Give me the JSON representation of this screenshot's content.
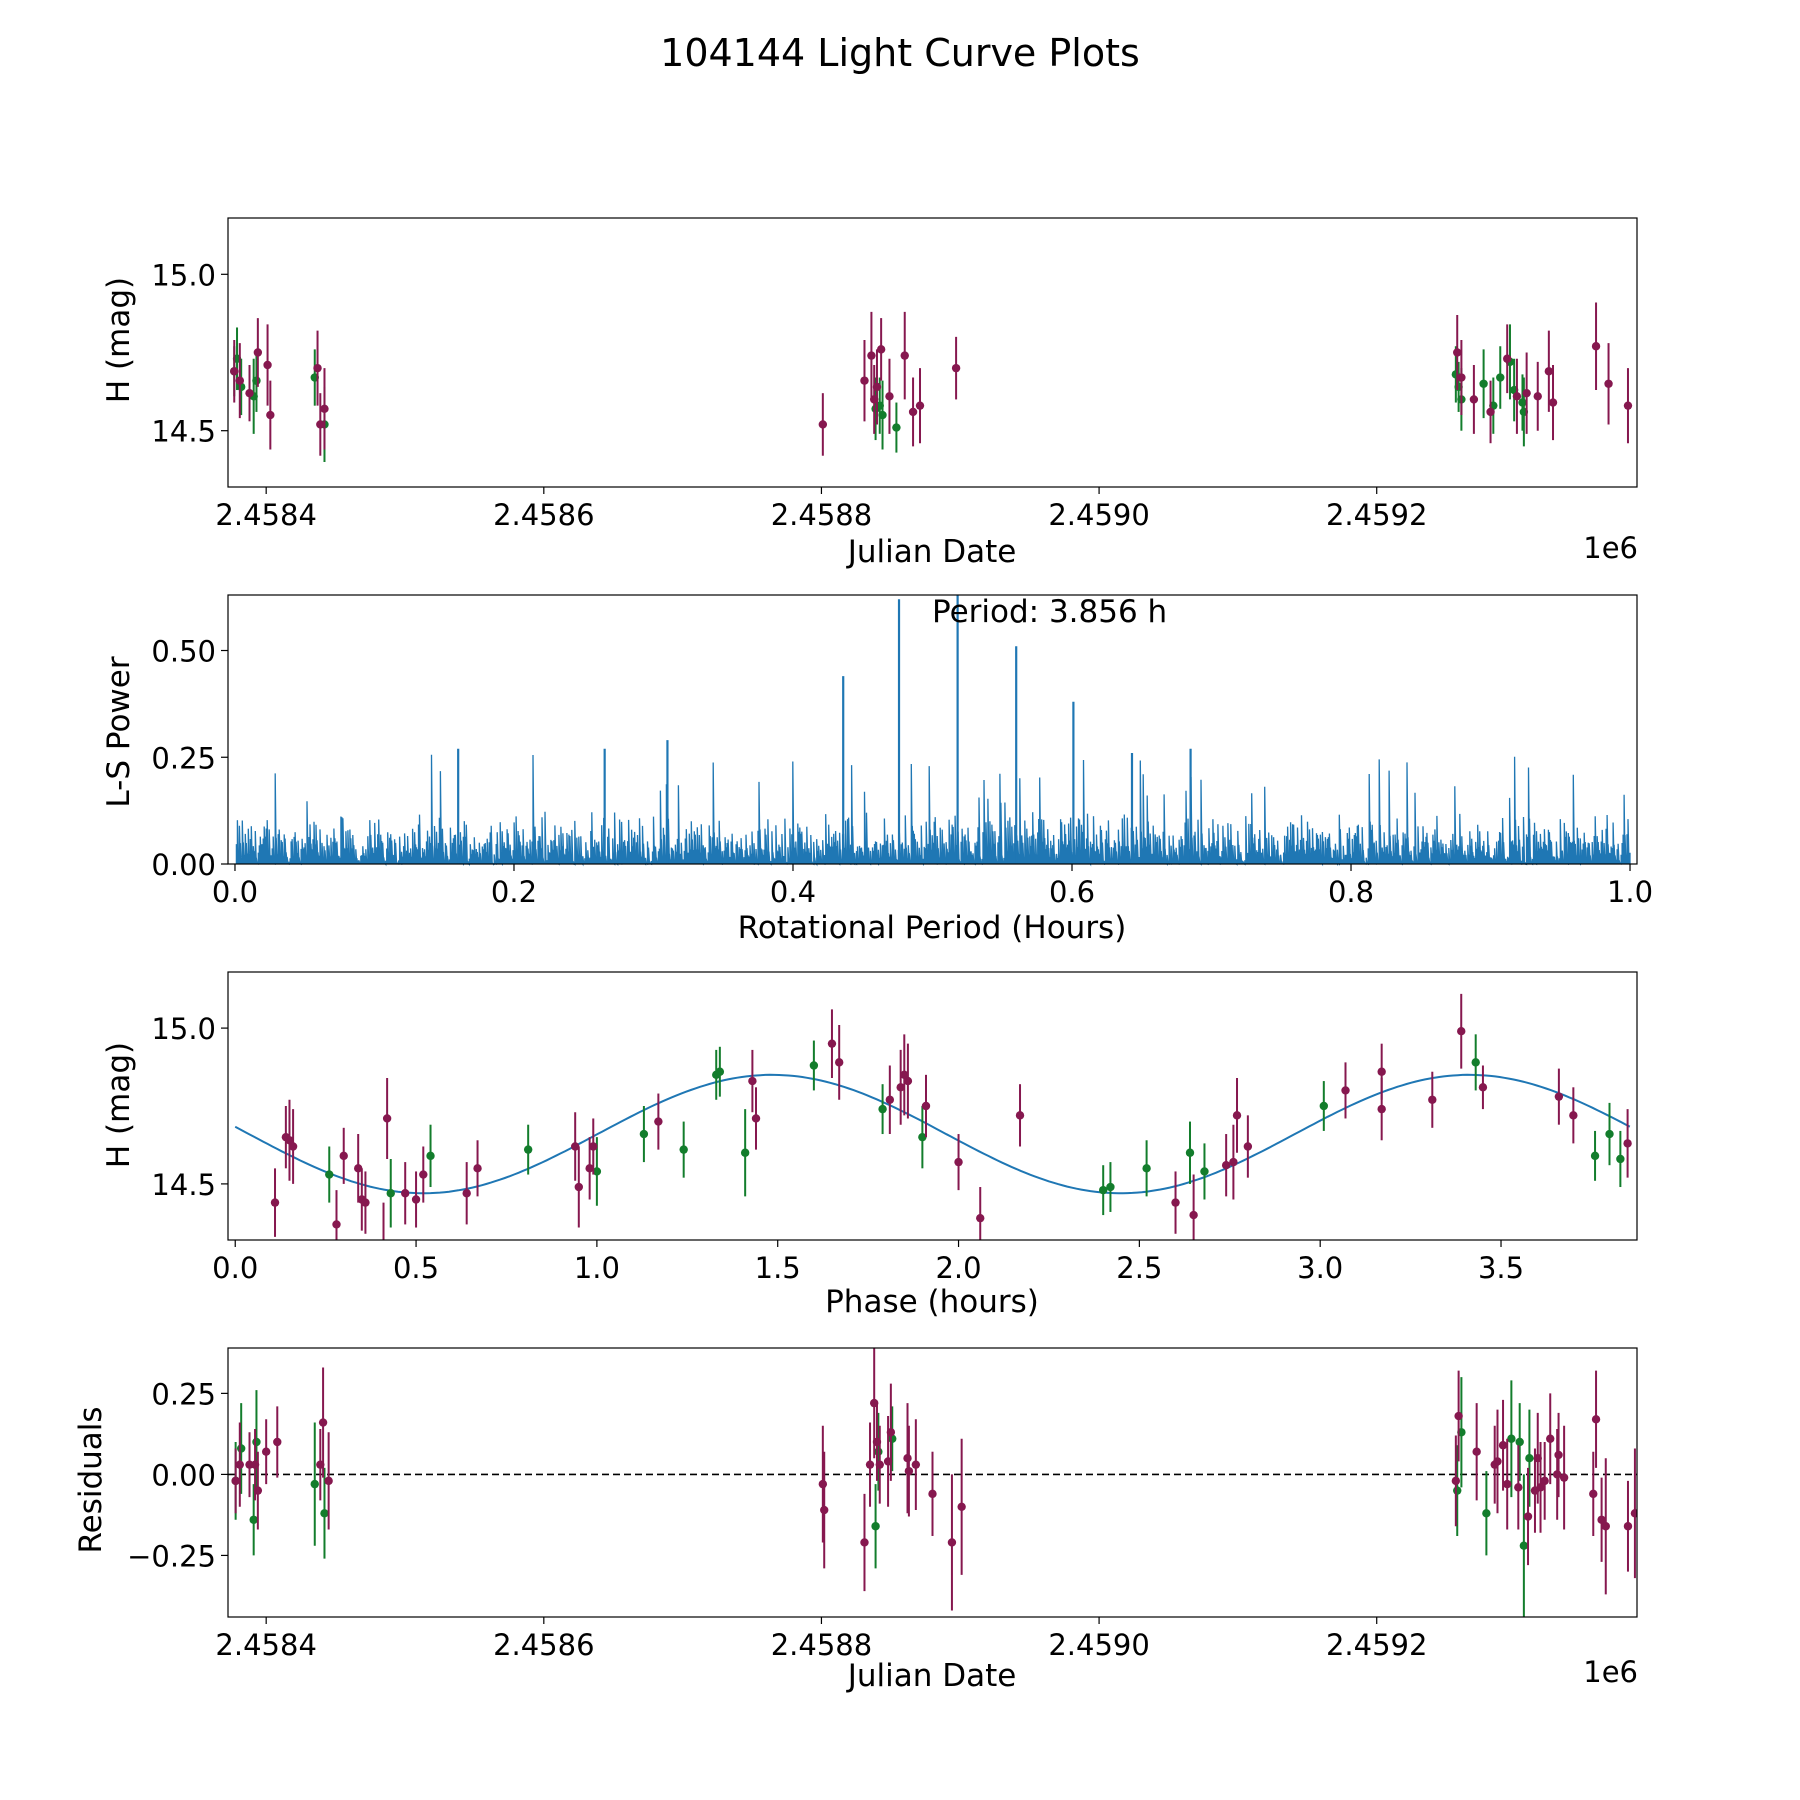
{
  "figure_title": "104144 Light Curve Plots",
  "colors": {
    "green": "#137d2c",
    "maroon": "#86184f",
    "blue": "#1f77b4",
    "axis": "#000000"
  },
  "chart_data": [
    {
      "id": "lightcurve",
      "type": "scatter",
      "title": "",
      "xlabel": "Julian Date",
      "ylabel": "H (mag)",
      "offset_text": "1e6",
      "xlim": [
        2458372.5,
        2459387.5
      ],
      "ylim": [
        14.32,
        15.18
      ],
      "y_inverted": true,
      "xticks": [
        2458400,
        2458600,
        2458800,
        2459000,
        2459200
      ],
      "xtick_labels": [
        "2.4584",
        "2.4586",
        "2.4588",
        "2.4590",
        "2.4592"
      ],
      "yticks": [
        15.0,
        14.5
      ],
      "ytick_labels": [
        "15.0",
        "14.5"
      ],
      "series": [
        {
          "name": "green",
          "color": "#137d2c",
          "x": [
            2458377,
            2458379,
            2458382,
            2458391,
            2458393,
            2458435,
            2458442,
            2458839,
            2458842,
            2458844,
            2458854,
            2459257,
            2459259,
            2459261,
            2459277,
            2459284,
            2459289,
            2459296,
            2459299,
            2459305,
            2459306
          ],
          "y": [
            14.69,
            14.73,
            14.64,
            14.61,
            14.66,
            14.67,
            14.52,
            14.57,
            14.58,
            14.55,
            14.51,
            14.68,
            14.64,
            14.6,
            14.65,
            14.58,
            14.67,
            14.72,
            14.63,
            14.59,
            14.56
          ],
          "err": [
            0.08,
            0.1,
            0.09,
            0.12,
            0.1,
            0.09,
            0.12,
            0.1,
            0.09,
            0.11,
            0.08,
            0.09,
            0.08,
            0.1,
            0.11,
            0.09,
            0.1,
            0.12,
            0.1,
            0.09,
            0.11
          ]
        },
        {
          "name": "maroon",
          "color": "#86184f",
          "x": [
            2458377,
            2458381,
            2458388,
            2458394,
            2458401,
            2458403,
            2458437,
            2458439,
            2458442,
            2458801,
            2458831,
            2458836,
            2458838,
            2458840,
            2458843,
            2458849,
            2458860,
            2458866,
            2458871,
            2458897,
            2459258,
            2459261,
            2459270,
            2459282,
            2459294,
            2459301,
            2459308,
            2459316,
            2459324,
            2459327,
            2459358,
            2459367,
            2459381
          ],
          "y": [
            14.69,
            14.66,
            14.62,
            14.75,
            14.71,
            14.55,
            14.7,
            14.52,
            14.57,
            14.52,
            14.66,
            14.74,
            14.6,
            14.64,
            14.76,
            14.61,
            14.74,
            14.56,
            14.58,
            14.7,
            14.75,
            14.67,
            14.6,
            14.56,
            14.73,
            14.61,
            14.62,
            14.61,
            14.69,
            14.59,
            14.77,
            14.65,
            14.58
          ],
          "err": [
            0.1,
            0.12,
            0.09,
            0.11,
            0.13,
            0.11,
            0.12,
            0.1,
            0.13,
            0.1,
            0.13,
            0.14,
            0.11,
            0.12,
            0.1,
            0.12,
            0.14,
            0.11,
            0.12,
            0.1,
            0.12,
            0.12,
            0.11,
            0.1,
            0.11,
            0.12,
            0.13,
            0.11,
            0.13,
            0.12,
            0.14,
            0.13,
            0.12
          ]
        }
      ]
    },
    {
      "id": "periodogram",
      "type": "line",
      "title": "",
      "xlabel": "Rotational Period (Hours)",
      "ylabel": "L-S Power",
      "xlim": [
        -0.005,
        1.005
      ],
      "ylim": [
        0.0,
        0.63
      ],
      "xticks": [
        0.0,
        0.2,
        0.4,
        0.6,
        0.8,
        1.0
      ],
      "xtick_labels": [
        "0.0",
        "0.2",
        "0.4",
        "0.6",
        "0.8",
        "1.0"
      ],
      "yticks": [
        0.0,
        0.25,
        0.5
      ],
      "ytick_labels": [
        "0.00",
        "0.25",
        "0.50"
      ],
      "annotation": "Period: 3.856 h",
      "color": "#1f77b4",
      "noise_level": 0.13,
      "peaks": [
        {
          "x": 0.436,
          "y": 0.44
        },
        {
          "x": 0.476,
          "y": 0.62
        },
        {
          "x": 0.518,
          "y": 0.63
        },
        {
          "x": 0.56,
          "y": 0.51
        },
        {
          "x": 0.601,
          "y": 0.38
        },
        {
          "x": 0.31,
          "y": 0.29
        },
        {
          "x": 0.265,
          "y": 0.27
        },
        {
          "x": 0.685,
          "y": 0.27
        },
        {
          "x": 0.16,
          "y": 0.27
        },
        {
          "x": 0.643,
          "y": 0.26
        }
      ]
    },
    {
      "id": "phased",
      "type": "scatter",
      "title": "",
      "xlabel": "Phase (hours)",
      "ylabel": "H (mag)",
      "xlim": [
        -0.02,
        3.876
      ],
      "ylim": [
        14.32,
        15.18
      ],
      "y_inverted": true,
      "xticks": [
        0.0,
        0.5,
        1.0,
        1.5,
        2.0,
        2.5,
        3.0,
        3.5
      ],
      "xtick_labels": [
        "0.0",
        "0.5",
        "1.0",
        "1.5",
        "2.0",
        "2.5",
        "3.0",
        "3.5"
      ],
      "yticks": [
        15.0,
        14.5
      ],
      "ytick_labels": [
        "15.0",
        "14.5"
      ],
      "model": {
        "period": 3.856,
        "mean": 14.66,
        "amplitude": 0.19,
        "min_phase": 0.52
      },
      "series": [
        {
          "name": "green",
          "color": "#137d2c",
          "x": [
            0.26,
            0.43,
            0.54,
            0.81,
            1.0,
            1.13,
            1.24,
            1.33,
            1.34,
            1.41,
            1.6,
            1.79,
            1.9,
            2.4,
            2.42,
            2.52,
            2.64,
            2.68,
            3.01,
            3.43,
            3.76,
            3.8,
            3.83
          ],
          "y": [
            14.53,
            14.47,
            14.59,
            14.61,
            14.54,
            14.66,
            14.61,
            14.85,
            14.86,
            14.6,
            14.88,
            14.74,
            14.65,
            14.48,
            14.49,
            14.55,
            14.6,
            14.54,
            14.75,
            14.89,
            14.59,
            14.66,
            14.58
          ],
          "err": [
            0.09,
            0.11,
            0.1,
            0.08,
            0.11,
            0.09,
            0.09,
            0.08,
            0.08,
            0.14,
            0.08,
            0.08,
            0.1,
            0.08,
            0.08,
            0.09,
            0.1,
            0.09,
            0.08,
            0.09,
            0.08,
            0.1,
            0.09
          ]
        },
        {
          "name": "maroon",
          "color": "#86184f",
          "x": [
            0.11,
            0.14,
            0.15,
            0.16,
            0.28,
            0.3,
            0.34,
            0.35,
            0.36,
            0.41,
            0.42,
            0.47,
            0.5,
            0.52,
            0.64,
            0.67,
            0.94,
            0.95,
            0.98,
            0.99,
            1.17,
            1.43,
            1.44,
            1.65,
            1.67,
            1.81,
            1.84,
            1.85,
            1.86,
            1.91,
            2.0,
            2.06,
            2.17,
            2.6,
            2.65,
            2.74,
            2.76,
            2.77,
            2.8,
            3.07,
            3.17,
            3.17,
            3.31,
            3.39,
            3.45,
            3.66,
            3.7,
            3.85
          ],
          "y": [
            14.44,
            14.65,
            14.64,
            14.62,
            14.37,
            14.59,
            14.55,
            14.45,
            14.44,
            14.29,
            14.71,
            14.47,
            14.45,
            14.53,
            14.47,
            14.55,
            14.62,
            14.49,
            14.55,
            14.62,
            14.7,
            14.83,
            14.71,
            14.95,
            14.89,
            14.77,
            14.81,
            14.85,
            14.83,
            14.75,
            14.57,
            14.39,
            14.72,
            14.44,
            14.4,
            14.56,
            14.57,
            14.72,
            14.62,
            14.8,
            14.86,
            14.74,
            14.77,
            14.99,
            14.81,
            14.78,
            14.72,
            14.63
          ],
          "err": [
            0.11,
            0.1,
            0.13,
            0.12,
            0.11,
            0.09,
            0.11,
            0.1,
            0.1,
            0.15,
            0.13,
            0.1,
            0.09,
            0.09,
            0.1,
            0.09,
            0.11,
            0.13,
            0.1,
            0.09,
            0.09,
            0.1,
            0.1,
            0.11,
            0.12,
            0.11,
            0.12,
            0.13,
            0.12,
            0.1,
            0.09,
            0.1,
            0.1,
            0.1,
            0.13,
            0.1,
            0.12,
            0.12,
            0.1,
            0.09,
            0.09,
            0.1,
            0.09,
            0.12,
            0.07,
            0.09,
            0.09,
            0.11
          ]
        }
      ]
    },
    {
      "id": "residuals",
      "type": "scatter",
      "title": "",
      "xlabel": "Julian Date",
      "ylabel": "Residuals",
      "offset_text": "1e6",
      "xlim": [
        2458372.5,
        2459387.5
      ],
      "ylim": [
        -0.44,
        0.39
      ],
      "xticks": [
        2458400,
        2458600,
        2458800,
        2459000,
        2459200
      ],
      "xtick_labels": [
        "2.4584",
        "2.4586",
        "2.4588",
        "2.4590",
        "2.4592"
      ],
      "yticks": [
        0.25,
        0.0,
        -0.25
      ],
      "ytick_labels": [
        "0.25",
        "0.00",
        "−0.25"
      ],
      "zero_line": 0.0,
      "series": [
        {
          "name": "green",
          "color": "#137d2c",
          "x": [
            2458378,
            2458382,
            2458391,
            2458393,
            2458435,
            2458442,
            2458839,
            2458841,
            2458851,
            2459258,
            2459261,
            2459279,
            2459297,
            2459303,
            2459306,
            2459310
          ],
          "y": [
            -0.02,
            0.08,
            -0.14,
            0.1,
            -0.03,
            -0.12,
            -0.16,
            0.07,
            0.11,
            -0.05,
            0.13,
            -0.12,
            0.11,
            0.1,
            -0.22,
            0.05
          ],
          "err": [
            0.12,
            0.14,
            0.11,
            0.16,
            0.19,
            0.14,
            0.13,
            0.12,
            0.1,
            0.14,
            0.17,
            0.13,
            0.18,
            0.12,
            0.22,
            0.15
          ]
        },
        {
          "name": "maroon",
          "color": "#86184f",
          "x": [
            2458378,
            2458381,
            2458388,
            2458392,
            2458394,
            2458400,
            2458408,
            2458439,
            2458441,
            2458445,
            2458801,
            2458802,
            2458831,
            2458835,
            2458838,
            2458840,
            2458842,
            2458848,
            2458850,
            2458862,
            2458863,
            2458868,
            2458880,
            2458894,
            2458901,
            2459257,
            2459259,
            2459272,
            2459285,
            2459287,
            2459291,
            2459294,
            2459302,
            2459309,
            2459314,
            2459316,
            2459318,
            2459321,
            2459325,
            2459330,
            2459331,
            2459335,
            2459356,
            2459358,
            2459362,
            2459365,
            2459381,
            2459386
          ],
          "y": [
            -0.02,
            0.03,
            0.03,
            0.03,
            -0.05,
            0.07,
            0.1,
            0.03,
            0.16,
            -0.02,
            -0.03,
            -0.11,
            -0.21,
            0.03,
            0.22,
            0.1,
            0.03,
            0.04,
            0.13,
            0.05,
            0.01,
            0.03,
            -0.06,
            -0.21,
            -0.1,
            -0.02,
            0.18,
            0.07,
            0.03,
            0.04,
            0.09,
            -0.03,
            -0.04,
            -0.13,
            -0.05,
            0.05,
            -0.04,
            -0.02,
            0.11,
            0.0,
            0.06,
            -0.01,
            -0.06,
            0.17,
            -0.14,
            -0.16,
            -0.16,
            -0.12
          ],
          "err": [
            0.1,
            0.13,
            0.1,
            0.11,
            0.12,
            0.1,
            0.11,
            0.11,
            0.17,
            0.15,
            0.18,
            0.18,
            0.15,
            0.13,
            0.17,
            0.12,
            0.12,
            0.14,
            0.15,
            0.17,
            0.14,
            0.14,
            0.13,
            0.21,
            0.21,
            0.14,
            0.14,
            0.15,
            0.12,
            0.16,
            0.14,
            0.14,
            0.13,
            0.15,
            0.13,
            0.14,
            0.14,
            0.12,
            0.14,
            0.14,
            0.13,
            0.16,
            0.13,
            0.15,
            0.13,
            0.21,
            0.14,
            0.2
          ]
        }
      ]
    }
  ]
}
